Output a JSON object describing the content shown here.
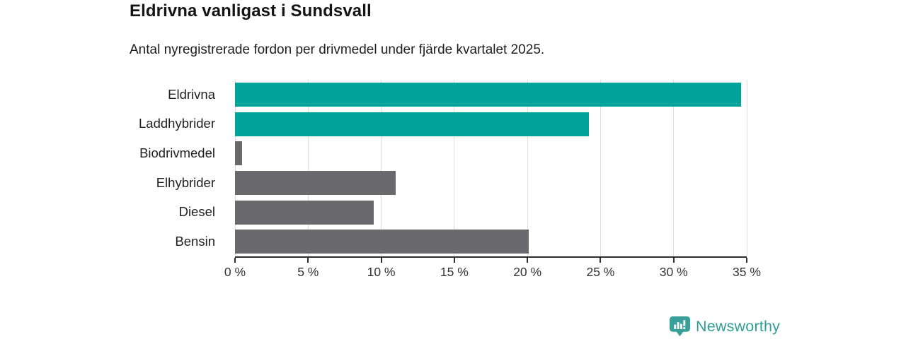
{
  "chart_data": {
    "type": "bar",
    "orientation": "horizontal",
    "title": "Eldrivna vanligast i Sundsvall",
    "subtitle": "Antal nyregistrerade fordon per drivmedel under fjärde kvartalet 2025.",
    "categories": [
      "Eldrivna",
      "Laddhybrider",
      "Biodrivmedel",
      "Elhybrider",
      "Diesel",
      "Bensin"
    ],
    "values": [
      34.6,
      24.2,
      0.5,
      11,
      9.5,
      20.1
    ],
    "bar_colors": [
      "#00a49b",
      "#00a49b",
      "#69696e",
      "#69696e",
      "#69696e",
      "#69696e"
    ],
    "xlabel": "",
    "ylabel": "",
    "xlim": [
      0,
      35
    ],
    "x_ticks": [
      0,
      5,
      10,
      15,
      20,
      25,
      30,
      35
    ],
    "x_tick_labels": [
      "0 %",
      "5 %",
      "10 %",
      "15 %",
      "20 %",
      "25 %",
      "30 %",
      "35 %"
    ],
    "grid": "vertical-gridlines-every-5pct",
    "legend": "none"
  },
  "branding": {
    "logo_text": "Newsworthy",
    "logo_icon": "bar-chart-speech-bubble-icon",
    "logo_color": "#2f9e96"
  },
  "colors": {
    "highlight_teal": "#00a49b",
    "neutral_gray": "#69696e",
    "gridline": "#dcdcdc",
    "axis_line": "#2e2e2e",
    "title_text": "#141414",
    "tick_text": "#333333"
  }
}
